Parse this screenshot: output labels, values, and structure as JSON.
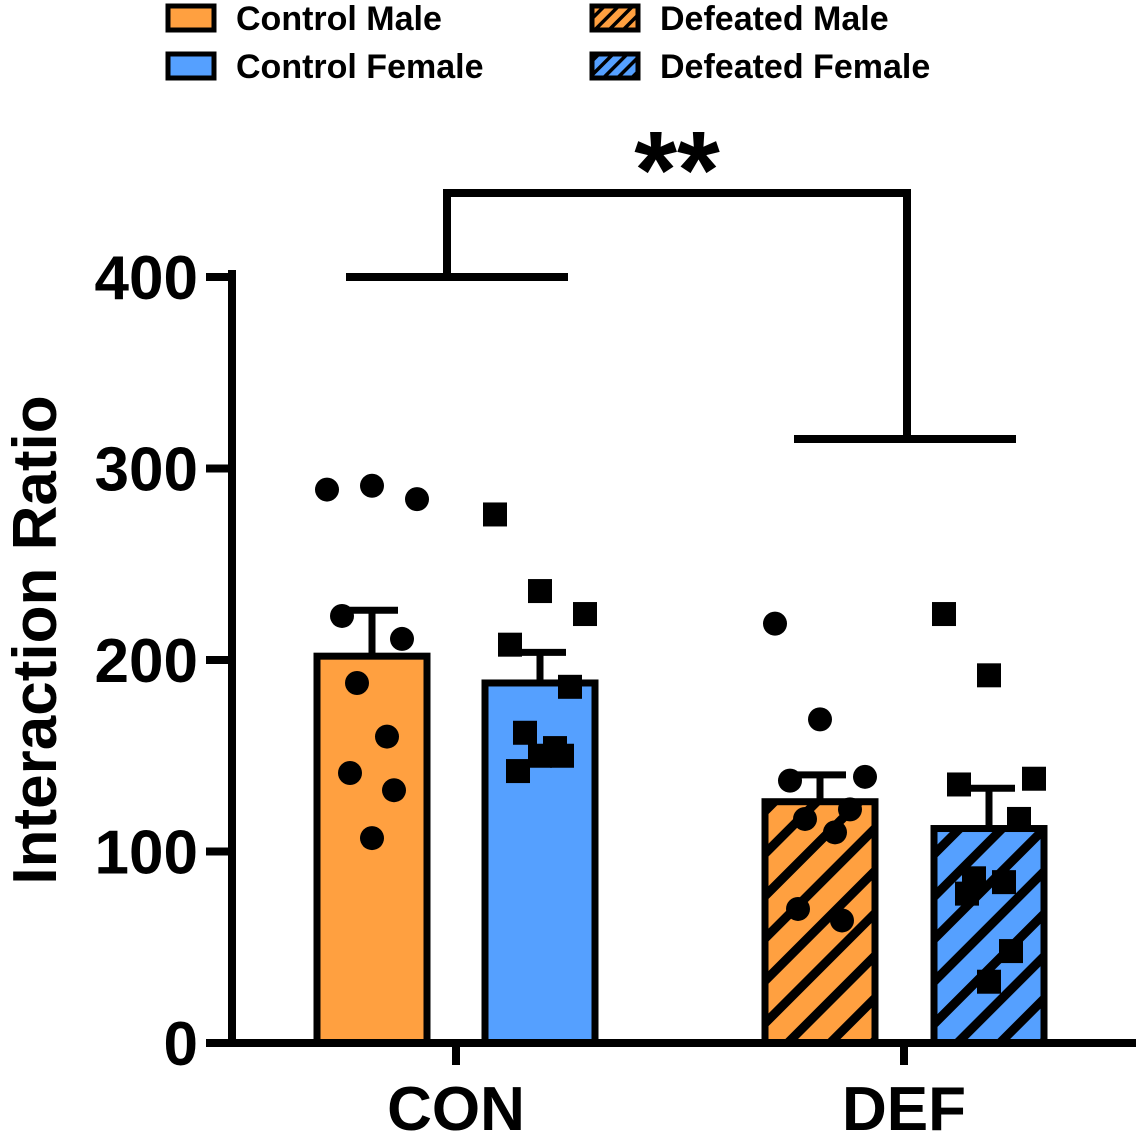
{
  "chart_data": {
    "type": "bar",
    "title": "",
    "xlabel": "",
    "ylabel": "Interaction Ratio",
    "ylim": [
      0,
      400
    ],
    "yticks": [
      "0",
      "100",
      "200",
      "300",
      "400"
    ],
    "categories": [
      "CON",
      "DEF"
    ],
    "colors": {
      "male": "#FFA040",
      "female": "#55A0FF",
      "stroke": "#000000"
    },
    "series": [
      {
        "name": "Control Male",
        "category": "CON",
        "color": "#FFA040",
        "hatched": false,
        "marker": "circle",
        "mean": 202,
        "sem": 24,
        "points": [
          289,
          291,
          284,
          223,
          211,
          188,
          160,
          141,
          132,
          107
        ]
      },
      {
        "name": "Control Female",
        "category": "CON",
        "color": "#55A0FF",
        "hatched": false,
        "marker": "square",
        "mean": 188,
        "sem": 16,
        "points": [
          276,
          236,
          224,
          208,
          186,
          162,
          154,
          142,
          150,
          150
        ]
      },
      {
        "name": "Defeated Male",
        "category": "DEF",
        "color": "#FFA040",
        "hatched": true,
        "marker": "circle",
        "mean": 126,
        "sem": 14,
        "points": [
          219,
          169,
          139,
          137,
          122,
          117,
          110,
          70,
          64
        ]
      },
      {
        "name": "Defeated Female",
        "category": "DEF",
        "color": "#55A0FF",
        "hatched": true,
        "marker": "square",
        "mean": 112,
        "sem": 21,
        "points": [
          224,
          192,
          138,
          135,
          117,
          86,
          84,
          78,
          48,
          32
        ]
      }
    ],
    "legend": {
      "position": "top",
      "entries": [
        "Control Male",
        "Control Female",
        "Defeated Male",
        "Defeated Female"
      ]
    },
    "annotations": [
      {
        "type": "significance",
        "label": "**",
        "between": [
          "CON",
          "DEF"
        ]
      }
    ]
  }
}
